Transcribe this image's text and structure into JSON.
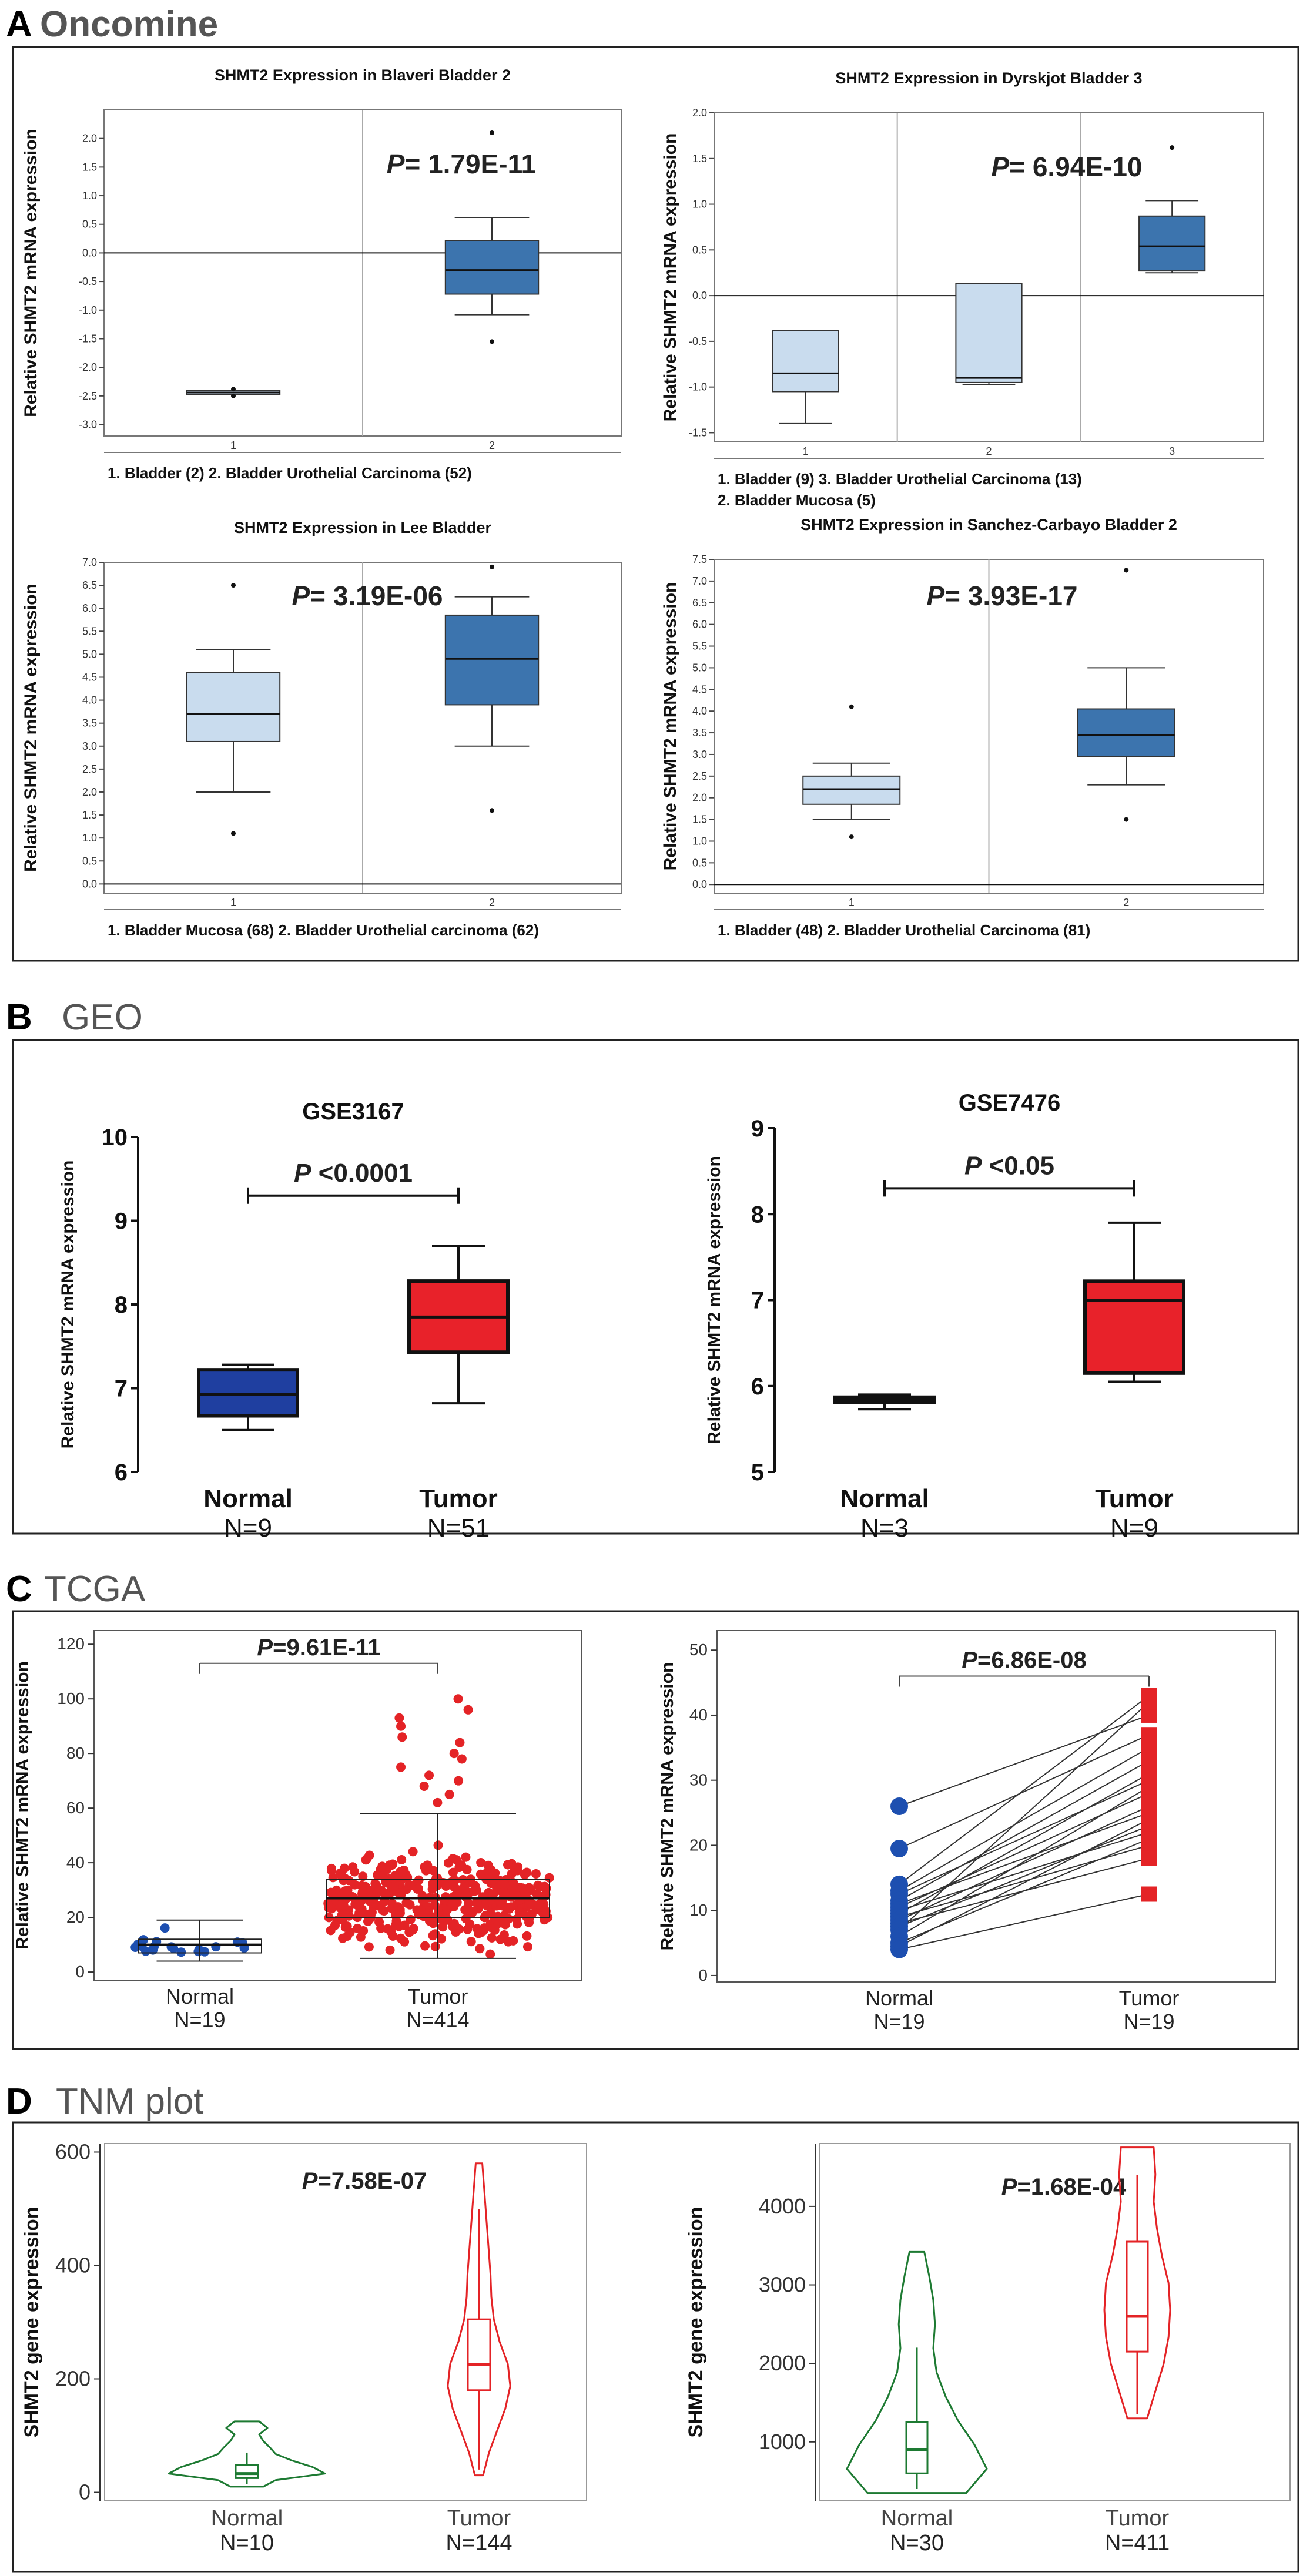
{
  "sections": [
    {
      "letter": "A",
      "title": "Oncomine"
    },
    {
      "letter": "B",
      "title": "GEO"
    },
    {
      "letter": "C",
      "title": "TCGA"
    },
    {
      "letter": "D",
      "title": "TNM plot"
    }
  ],
  "colors": {
    "dark_box": "#3c74ae",
    "light_box": "#c9dcee",
    "geo_normal": "#1f3fa0",
    "geo_tumor": "#e8222a",
    "tcga_normal": "#1d4fb0",
    "tcga_tumor": "#e42326",
    "violin_normal": "#1d7a32",
    "violin_tumor": "#e42326"
  },
  "chart_data": [
    {
      "id": "oncomine-blaveri",
      "type": "box",
      "title": "SHMT2 Expression in Blaveri Bladder 2",
      "ylabel": "Relative SHMT2 mRNA expression",
      "ylim": [
        -3.2,
        2.5
      ],
      "yticks": [
        -3.0,
        -2.5,
        -2.0,
        -1.5,
        -1.0,
        -0.5,
        0.0,
        0.5,
        1.0,
        1.5,
        2.0
      ],
      "ytick_labels": [
        "-3.0",
        "-2.5",
        "-2.0",
        "-1.5",
        "-1.0",
        "-0.5",
        "0.0",
        "0.5",
        "1.0",
        "1.5",
        "2.0"
      ],
      "zero_line": true,
      "pvalue_prefix": "P",
      "pvalue_text": "= 1.79E-11",
      "categories": [
        "1",
        "2"
      ],
      "legend_lines": [
        "1. Bladder (2)    2. Bladder Urothelial Carcinoma (52)"
      ],
      "boxes": [
        {
          "tick": "1",
          "min": -2.48,
          "q1": -2.48,
          "median": -2.44,
          "q3": -2.4,
          "max": -2.4,
          "outliers": [
            -2.38,
            -2.5
          ],
          "shade": "light"
        },
        {
          "tick": "2",
          "min": -1.08,
          "q1": -0.72,
          "median": -0.3,
          "q3": 0.22,
          "max": 0.62,
          "outliers": [
            2.1,
            -1.55
          ],
          "shade": "dark"
        }
      ]
    },
    {
      "id": "oncomine-dyrskjot",
      "type": "box",
      "title": "SHMT2 Expression in Dyrskjot Bladder 3",
      "ylabel": "Relative SHMT2 mRNA expression",
      "ylim": [
        -1.6,
        2.0
      ],
      "yticks": [
        -1.5,
        -1.0,
        -0.5,
        0.0,
        0.5,
        1.0,
        1.5,
        2.0
      ],
      "ytick_labels": [
        "-1.5",
        "-1.0",
        "-0.5",
        "0.0",
        "0.5",
        "1.0",
        "1.5",
        "2.0"
      ],
      "zero_line": true,
      "pvalue_prefix": "P",
      "pvalue_text": "= 6.94E-10",
      "categories": [
        "1",
        "2",
        "3"
      ],
      "legend_lines": [
        "1. Bladder (9)         3.  Bladder Urothelial Carcinoma (13)",
        "2. Bladder Mucosa (5)"
      ],
      "boxes": [
        {
          "tick": "1",
          "min": -1.4,
          "q1": -1.05,
          "median": -0.85,
          "q3": -0.38,
          "max": -0.38,
          "outliers": [],
          "shade": "light"
        },
        {
          "tick": "2",
          "min": -0.97,
          "q1": -0.95,
          "median": -0.9,
          "q3": 0.13,
          "max": 0.13,
          "outliers": [],
          "shade": "light"
        },
        {
          "tick": "3",
          "min": 0.25,
          "q1": 0.27,
          "median": 0.54,
          "q3": 0.87,
          "max": 1.04,
          "outliers": [
            1.62
          ],
          "shade": "dark"
        }
      ]
    },
    {
      "id": "oncomine-lee",
      "type": "box",
      "title": "SHMT2 Expression in Lee Bladder",
      "ylabel": "Relative SHMT2 mRNA expression",
      "ylim": [
        -0.2,
        7.0
      ],
      "yticks": [
        0.0,
        0.5,
        1.0,
        1.5,
        2.0,
        2.5,
        3.0,
        3.5,
        4.0,
        4.5,
        5.0,
        5.5,
        6.0,
        6.5,
        7.0
      ],
      "ytick_labels": [
        "0.0",
        "0.5",
        "1.0",
        "1.5",
        "2.0",
        "2.5",
        "3.0",
        "3.5",
        "4.0",
        "4.5",
        "5.0",
        "5.5",
        "6.0",
        "6.5",
        "7.0"
      ],
      "zero_line": true,
      "pvalue_prefix": "P",
      "pvalue_text": "= 3.19E-06",
      "categories": [
        "1",
        "2"
      ],
      "legend_lines": [
        "1. Bladder Mucosa (68)   2.  Bladder Urothelial carcinoma (62)"
      ],
      "boxes": [
        {
          "tick": "1",
          "min": 2.0,
          "q1": 3.1,
          "median": 3.7,
          "q3": 4.6,
          "max": 5.1,
          "outliers": [
            6.5,
            1.1
          ],
          "shade": "light"
        },
        {
          "tick": "2",
          "min": 3.0,
          "q1": 3.9,
          "median": 4.9,
          "q3": 5.85,
          "max": 6.25,
          "outliers": [
            6.9,
            1.6
          ],
          "shade": "dark"
        }
      ]
    },
    {
      "id": "oncomine-sanchez",
      "type": "box",
      "title": "SHMT2 Expression in Sanchez-Carbayo Bladder 2",
      "ylabel": "Relative SHMT2 mRNA expression",
      "ylim": [
        -0.2,
        7.5
      ],
      "yticks": [
        0.0,
        0.5,
        1.0,
        1.5,
        2.0,
        2.5,
        3.0,
        3.5,
        4.0,
        4.5,
        5.0,
        5.5,
        6.0,
        6.5,
        7.0,
        7.5
      ],
      "ytick_labels": [
        "0.0",
        "0.5",
        "1.0",
        "1.5",
        "2.0",
        "2.5",
        "3.0",
        "3.5",
        "4.0",
        "4.5",
        "5.0",
        "5.5",
        "6.0",
        "6.5",
        "7.0",
        "7.5"
      ],
      "zero_line": true,
      "pvalue_prefix": "P",
      "pvalue_text": "= 3.93E-17",
      "categories": [
        "1",
        "2"
      ],
      "legend_lines": [
        "1. Bladder (48)        2. Bladder Urothelial Carcinoma (81)"
      ],
      "boxes": [
        {
          "tick": "1",
          "min": 1.5,
          "q1": 1.85,
          "median": 2.2,
          "q3": 2.5,
          "max": 2.8,
          "outliers": [
            4.1,
            1.1
          ],
          "shade": "light"
        },
        {
          "tick": "2",
          "min": 2.3,
          "q1": 2.95,
          "median": 3.45,
          "q3": 4.05,
          "max": 5.0,
          "outliers": [
            7.25,
            1.5
          ],
          "shade": "dark"
        }
      ]
    },
    {
      "id": "geo-gse3167",
      "type": "box",
      "title": "GSE3167",
      "ylabel": "Relative SHMT2 mRNA expression",
      "ylim": [
        6,
        10
      ],
      "yticks": [
        6,
        7,
        8,
        9,
        10
      ],
      "ytick_labels": [
        "6",
        "7",
        "8",
        "9",
        "10"
      ],
      "pvalue_prefix": "P",
      "pvalue_text": " <0.0001",
      "categories": [
        "Normal",
        "Tumor"
      ],
      "n_labels": [
        "N=9",
        "N=51"
      ],
      "boxes": [
        {
          "name": "Normal",
          "min": 6.5,
          "q1": 6.67,
          "median": 6.93,
          "q3": 7.22,
          "max": 7.28,
          "color": "normal"
        },
        {
          "name": "Tumor",
          "min": 6.82,
          "q1": 7.43,
          "median": 7.85,
          "q3": 8.28,
          "max": 8.7,
          "color": "tumor"
        }
      ],
      "bracket_y": 9.3
    },
    {
      "id": "geo-gse7476",
      "type": "box",
      "title": "GSE7476",
      "ylabel": "Relative SHMT2 mRNA expression",
      "ylim": [
        5,
        9
      ],
      "yticks": [
        5,
        6,
        7,
        8,
        9
      ],
      "ytick_labels": [
        "5",
        "6",
        "7",
        "8",
        "9"
      ],
      "pvalue_prefix": "P",
      "pvalue_text": " <0.05",
      "categories": [
        "Normal",
        "Tumor"
      ],
      "n_labels": [
        "N=3",
        "N=9"
      ],
      "boxes": [
        {
          "name": "Normal",
          "min": 5.73,
          "q1": 5.81,
          "median": 5.84,
          "q3": 5.87,
          "max": 5.9,
          "color": "normal"
        },
        {
          "name": "Tumor",
          "min": 6.05,
          "q1": 6.15,
          "median": 7.0,
          "q3": 7.22,
          "max": 7.9,
          "color": "tumor"
        }
      ],
      "bracket_y": 8.3
    },
    {
      "id": "tcga-unpaired",
      "type": "beeswarm",
      "ylabel": "Relative SHMT2 mRNA expression",
      "ylim": [
        -3,
        125
      ],
      "yticks": [
        0,
        20,
        40,
        60,
        80,
        100,
        120
      ],
      "ytick_labels": [
        "0",
        "20",
        "40",
        "60",
        "80",
        "100",
        "120"
      ],
      "pvalue_prefix": "P",
      "pvalue_text": "=9.61E-11",
      "categories": [
        "Normal",
        "Tumor"
      ],
      "n_labels": [
        "N=19",
        "N=414"
      ],
      "boxes": [
        {
          "name": "Normal",
          "n": 19,
          "min": 4,
          "q1": 7,
          "median": 10,
          "q3": 12,
          "max": 19,
          "color": "normal"
        },
        {
          "name": "Tumor",
          "n": 414,
          "min": 5,
          "q1": 20,
          "median": 27,
          "q3": 34,
          "max": 58,
          "color": "tumor",
          "high_outliers": [
            62,
            65,
            68,
            70,
            72,
            75,
            78,
            80,
            84,
            86,
            90,
            93,
            96,
            100
          ]
        }
      ],
      "bracket_y": 113
    },
    {
      "id": "tcga-paired",
      "type": "paired",
      "ylabel": "Relative SHMT2 mRNA expression",
      "ylim": [
        -1,
        53
      ],
      "yticks": [
        0,
        10,
        20,
        30,
        40,
        50
      ],
      "ytick_labels": [
        "0",
        "10",
        "20",
        "30",
        "40",
        "50"
      ],
      "pvalue_prefix": "P",
      "pvalue_text": "=6.86E-08",
      "categories": [
        "Normal",
        "Tumor"
      ],
      "n_labels": [
        "N=19",
        "N=19"
      ],
      "pairs": [
        [
          26,
          40
        ],
        [
          19.5,
          37
        ],
        [
          14,
          43
        ],
        [
          13,
          35
        ],
        [
          12.5,
          30
        ],
        [
          11.5,
          33
        ],
        [
          11,
          25
        ],
        [
          10.5,
          28
        ],
        [
          10,
          22
        ],
        [
          9.5,
          31
        ],
        [
          9,
          20
        ],
        [
          8.5,
          26
        ],
        [
          8,
          18
        ],
        [
          7.5,
          23
        ],
        [
          7,
          42
        ],
        [
          6,
          29
        ],
        [
          5,
          21
        ],
        [
          4.5,
          24
        ],
        [
          4,
          12.5
        ]
      ],
      "bracket_y": 46
    },
    {
      "id": "tnm-left",
      "type": "violin",
      "ylabel": "SHMT2 gene expression",
      "ylim": [
        -15,
        615
      ],
      "yticks": [
        0,
        200,
        400,
        600
      ],
      "ytick_labels": [
        "0",
        "200",
        "400",
        "600"
      ],
      "pvalue_prefix": "P",
      "pvalue_text": "=7.58E-07",
      "categories": [
        "Normal",
        "Tumor"
      ],
      "n_labels": [
        "N=10",
        "N=144"
      ],
      "violins": [
        {
          "name": "Normal",
          "min": 10,
          "max": 125,
          "q1": 25,
          "median": 33,
          "q3": 48,
          "whisker_low": 15,
          "whisker_high": 70,
          "color": "normal",
          "widths": [
            0.2,
            0.35,
            0.95,
            0.8,
            0.55,
            0.35,
            0.28,
            0.2,
            0.15,
            0.25,
            0.15
          ]
        },
        {
          "name": "Tumor",
          "min": 30,
          "max": 580,
          "q1": 180,
          "median": 225,
          "q3": 305,
          "whisker_low": 40,
          "whisker_high": 500,
          "color": "tumor",
          "widths": [
            0.05,
            0.12,
            0.22,
            0.32,
            0.38,
            0.35,
            0.25,
            0.18,
            0.15,
            0.14,
            0.12,
            0.1,
            0.08,
            0.06,
            0.04
          ]
        }
      ]
    },
    {
      "id": "tnm-right",
      "type": "violin",
      "ylabel": "SHMT2 gene expression",
      "ylim": [
        250,
        4800
      ],
      "yticks": [
        1000,
        2000,
        3000,
        4000
      ],
      "ytick_labels": [
        "1000",
        "2000",
        "3000",
        "4000"
      ],
      "pvalue_prefix": "P",
      "pvalue_text": "=1.68E-04",
      "categories": [
        "Normal",
        "Tumor"
      ],
      "n_labels": [
        "N=30",
        "N=411"
      ],
      "violins": [
        {
          "name": "Normal",
          "min": 350,
          "max": 3420,
          "q1": 600,
          "median": 900,
          "q3": 1250,
          "whisker_low": 400,
          "whisker_high": 2200,
          "color": "normal",
          "widths": [
            0.6,
            0.85,
            0.7,
            0.5,
            0.35,
            0.24,
            0.2,
            0.22,
            0.2,
            0.15,
            0.09
          ]
        },
        {
          "name": "Tumor",
          "min": 1300,
          "max": 4750,
          "q1": 2150,
          "median": 2600,
          "q3": 3550,
          "whisker_low": 1350,
          "whisker_high": 4400,
          "color": "tumor",
          "widths": [
            0.12,
            0.22,
            0.32,
            0.38,
            0.4,
            0.38,
            0.3,
            0.24,
            0.2,
            0.22,
            0.2
          ]
        }
      ]
    }
  ]
}
